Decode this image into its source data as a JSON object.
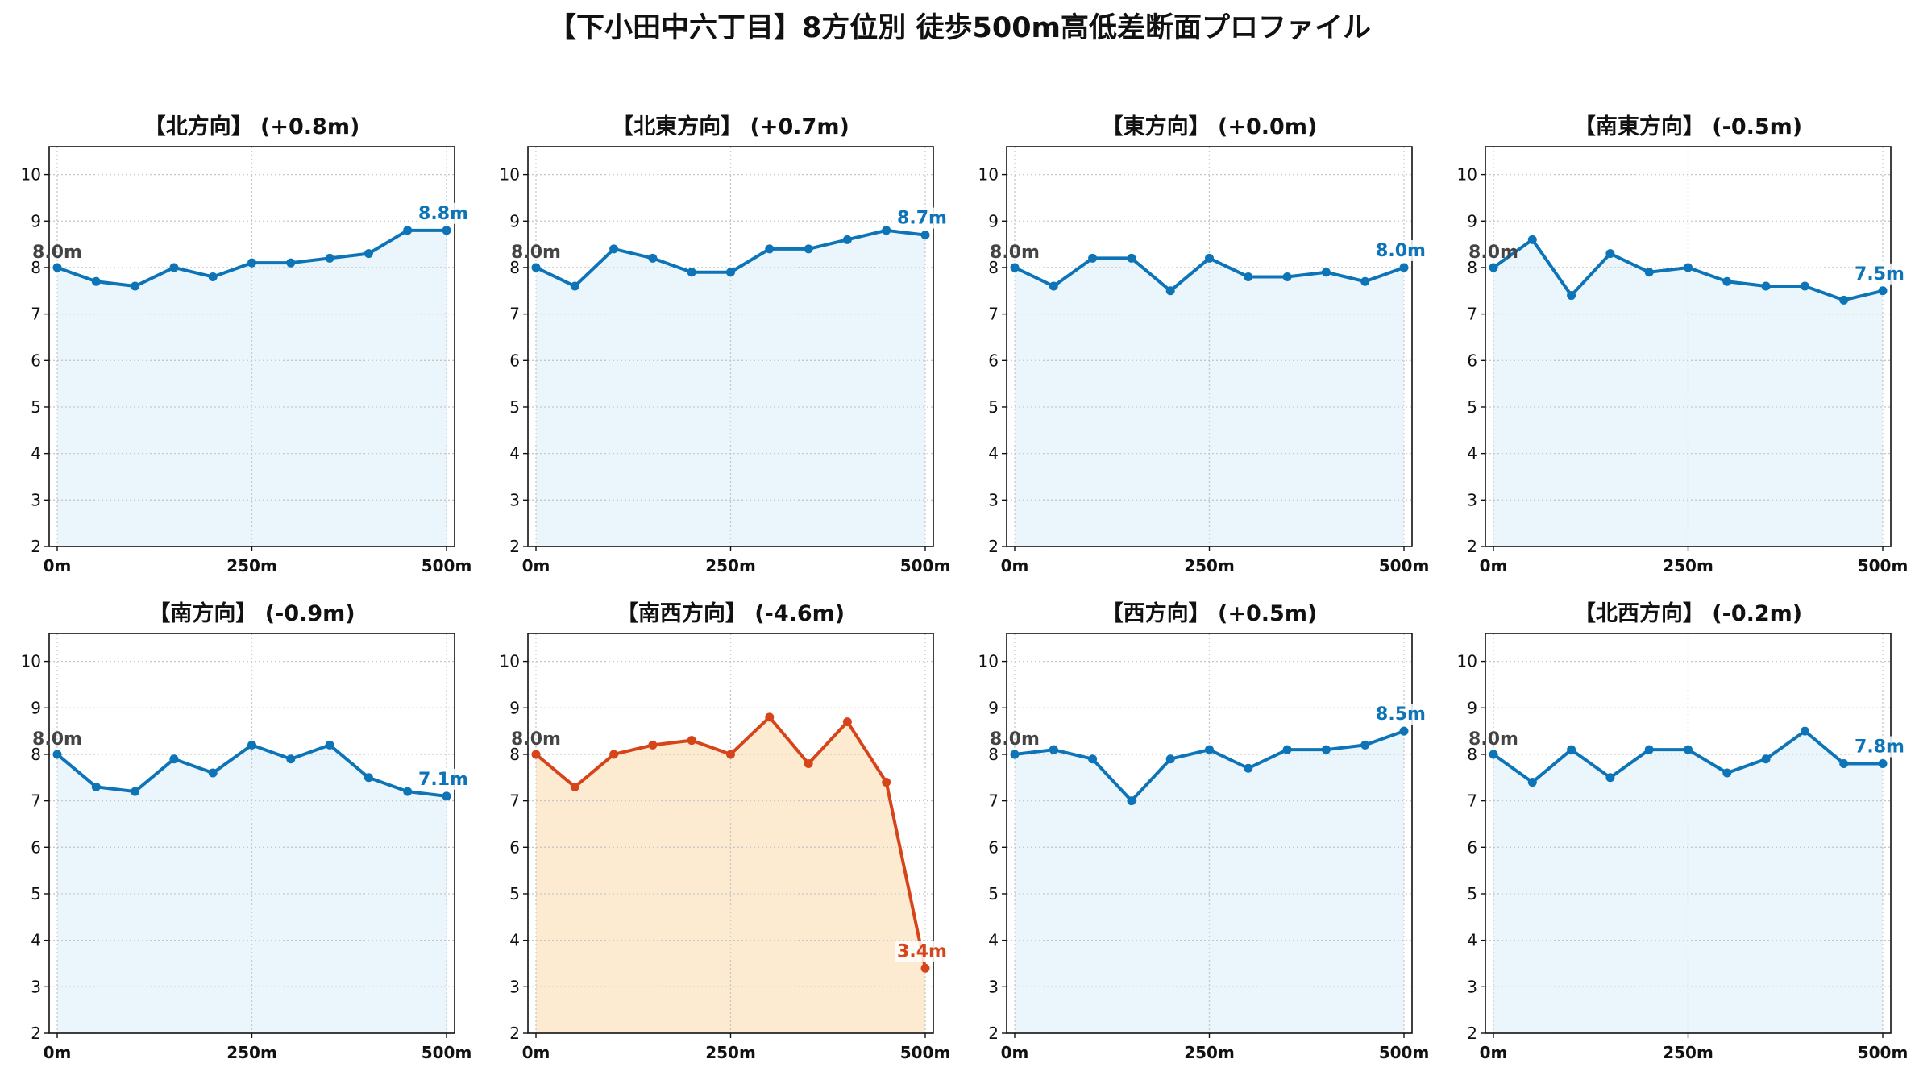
{
  "figure": {
    "title": "【下小田中六丁目】8方位別 徒歩500m高低差断面プロファイル"
  },
  "colors": {
    "normal_line": "#0d74b7",
    "normal_fill": "#eaf6fb",
    "alert_line": "#d7441a",
    "alert_fill": "#fdebd1",
    "start_label": "#444444"
  },
  "chart_data": [
    {
      "type": "area",
      "title": "【北方向】 (+0.8m)",
      "x": [
        0,
        50,
        100,
        150,
        200,
        250,
        300,
        350,
        400,
        450,
        500
      ],
      "values": [
        8.0,
        7.7,
        7.6,
        8.0,
        7.8,
        8.1,
        8.1,
        8.2,
        8.3,
        8.8,
        8.8
      ],
      "start_label": "8.0m",
      "end_label": "8.8m",
      "xticks": [
        "0m",
        "250m",
        "500m"
      ],
      "yticks": [
        "2",
        "3",
        "4",
        "5",
        "6",
        "7",
        "8",
        "9",
        "10"
      ],
      "xlim": [
        0,
        500
      ],
      "ylim": [
        2,
        10.6
      ],
      "grid": true,
      "alert": false
    },
    {
      "type": "area",
      "title": "【北東方向】 (+0.7m)",
      "x": [
        0,
        50,
        100,
        150,
        200,
        250,
        300,
        350,
        400,
        450,
        500
      ],
      "values": [
        8.0,
        7.6,
        8.4,
        8.2,
        7.9,
        7.9,
        8.4,
        8.4,
        8.6,
        8.8,
        8.7
      ],
      "start_label": "8.0m",
      "end_label": "8.7m",
      "xticks": [
        "0m",
        "250m",
        "500m"
      ],
      "yticks": [
        "2",
        "3",
        "4",
        "5",
        "6",
        "7",
        "8",
        "9",
        "10"
      ],
      "xlim": [
        0,
        500
      ],
      "ylim": [
        2,
        10.6
      ],
      "grid": true,
      "alert": false
    },
    {
      "type": "area",
      "title": "【東方向】 (+0.0m)",
      "x": [
        0,
        50,
        100,
        150,
        200,
        250,
        300,
        350,
        400,
        450,
        500
      ],
      "values": [
        8.0,
        7.6,
        8.2,
        8.2,
        7.5,
        8.2,
        7.8,
        7.8,
        7.9,
        7.7,
        8.0
      ],
      "start_label": "8.0m",
      "end_label": "8.0m",
      "xticks": [
        "0m",
        "250m",
        "500m"
      ],
      "yticks": [
        "2",
        "3",
        "4",
        "5",
        "6",
        "7",
        "8",
        "9",
        "10"
      ],
      "xlim": [
        0,
        500
      ],
      "ylim": [
        2,
        10.6
      ],
      "grid": true,
      "alert": false
    },
    {
      "type": "area",
      "title": "【南東方向】 (-0.5m)",
      "x": [
        0,
        50,
        100,
        150,
        200,
        250,
        300,
        350,
        400,
        450,
        500
      ],
      "values": [
        8.0,
        8.6,
        7.4,
        8.3,
        7.9,
        8.0,
        7.7,
        7.6,
        7.6,
        7.3,
        7.5
      ],
      "start_label": "8.0m",
      "end_label": "7.5m",
      "xticks": [
        "0m",
        "250m",
        "500m"
      ],
      "yticks": [
        "2",
        "3",
        "4",
        "5",
        "6",
        "7",
        "8",
        "9",
        "10"
      ],
      "xlim": [
        0,
        500
      ],
      "ylim": [
        2,
        10.6
      ],
      "grid": true,
      "alert": false
    },
    {
      "type": "area",
      "title": "【南方向】 (-0.9m)",
      "x": [
        0,
        50,
        100,
        150,
        200,
        250,
        300,
        350,
        400,
        450,
        500
      ],
      "values": [
        8.0,
        7.3,
        7.2,
        7.9,
        7.6,
        8.2,
        7.9,
        8.2,
        7.5,
        7.2,
        7.1
      ],
      "start_label": "8.0m",
      "end_label": "7.1m",
      "xticks": [
        "0m",
        "250m",
        "500m"
      ],
      "yticks": [
        "2",
        "3",
        "4",
        "5",
        "6",
        "7",
        "8",
        "9",
        "10"
      ],
      "xlim": [
        0,
        500
      ],
      "ylim": [
        2,
        10.6
      ],
      "grid": true,
      "alert": false
    },
    {
      "type": "area",
      "title": "【南西方向】 (-4.6m)",
      "x": [
        0,
        50,
        100,
        150,
        200,
        250,
        300,
        350,
        400,
        450,
        500
      ],
      "values": [
        8.0,
        7.3,
        8.0,
        8.2,
        8.3,
        8.0,
        8.8,
        7.8,
        8.7,
        7.4,
        3.4
      ],
      "start_label": "8.0m",
      "end_label": "3.4m",
      "xticks": [
        "0m",
        "250m",
        "500m"
      ],
      "yticks": [
        "2",
        "3",
        "4",
        "5",
        "6",
        "7",
        "8",
        "9",
        "10"
      ],
      "xlim": [
        0,
        500
      ],
      "ylim": [
        2,
        10.6
      ],
      "grid": true,
      "alert": true
    },
    {
      "type": "area",
      "title": "【西方向】 (+0.5m)",
      "x": [
        0,
        50,
        100,
        150,
        200,
        250,
        300,
        350,
        400,
        450,
        500
      ],
      "values": [
        8.0,
        8.1,
        7.9,
        7.0,
        7.9,
        8.1,
        7.7,
        8.1,
        8.1,
        8.2,
        8.5
      ],
      "start_label": "8.0m",
      "end_label": "8.5m",
      "xticks": [
        "0m",
        "250m",
        "500m"
      ],
      "yticks": [
        "2",
        "3",
        "4",
        "5",
        "6",
        "7",
        "8",
        "9",
        "10"
      ],
      "xlim": [
        0,
        500
      ],
      "ylim": [
        2,
        10.6
      ],
      "grid": true,
      "alert": false
    },
    {
      "type": "area",
      "title": "【北西方向】 (-0.2m)",
      "x": [
        0,
        50,
        100,
        150,
        200,
        250,
        300,
        350,
        400,
        450,
        500
      ],
      "values": [
        8.0,
        7.4,
        8.1,
        7.5,
        8.1,
        8.1,
        7.6,
        7.9,
        8.5,
        7.8,
        7.8
      ],
      "start_label": "8.0m",
      "end_label": "7.8m",
      "xticks": [
        "0m",
        "250m",
        "500m"
      ],
      "yticks": [
        "2",
        "3",
        "4",
        "5",
        "6",
        "7",
        "8",
        "9",
        "10"
      ],
      "xlim": [
        0,
        500
      ],
      "ylim": [
        2,
        10.6
      ],
      "grid": true,
      "alert": false
    }
  ]
}
